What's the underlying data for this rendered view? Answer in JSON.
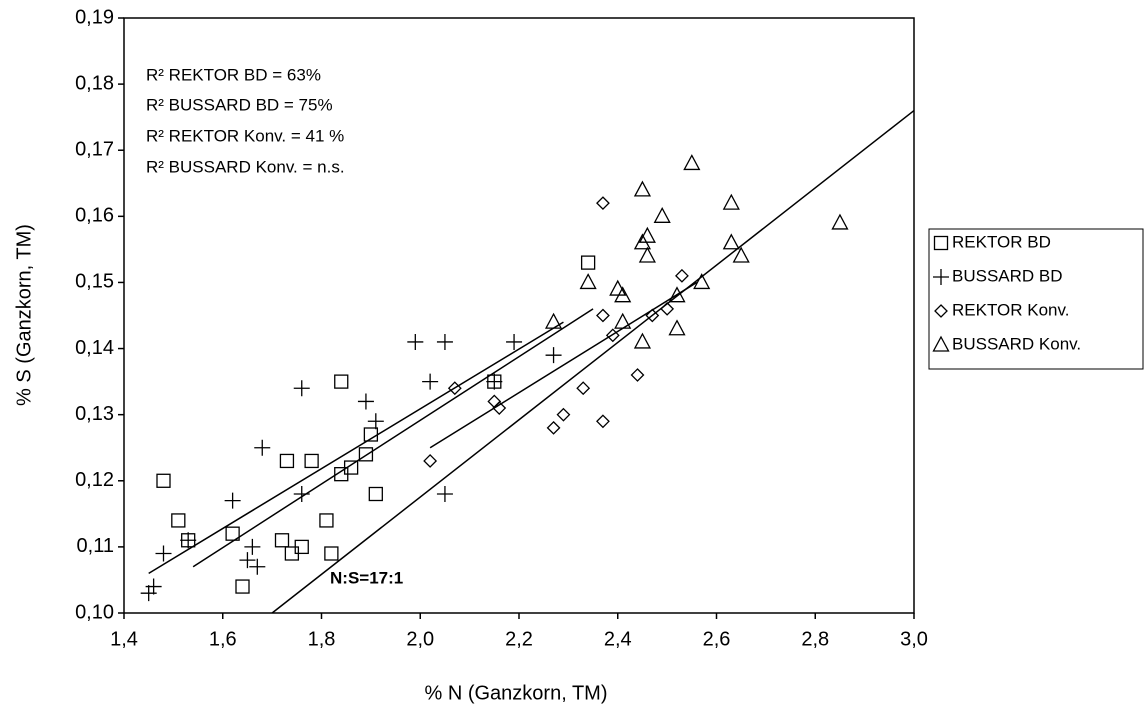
{
  "chart_data": {
    "type": "scatter",
    "xlabel": "% N (Ganzkorn, TM)",
    "ylabel": "% S (Ganzkorn, TM)",
    "xlim": [
      1.4,
      3.0
    ],
    "ylim": [
      0.1,
      0.19
    ],
    "xticks": [
      {
        "value": 1.4,
        "label": "1,4"
      },
      {
        "value": 1.6,
        "label": "1,6"
      },
      {
        "value": 1.8,
        "label": "1,8"
      },
      {
        "value": 2.0,
        "label": "2,0"
      },
      {
        "value": 2.2,
        "label": "2,2"
      },
      {
        "value": 2.4,
        "label": "2,4"
      },
      {
        "value": 2.6,
        "label": "2,6"
      },
      {
        "value": 2.8,
        "label": "2,8"
      },
      {
        "value": 3.0,
        "label": "3,0"
      }
    ],
    "yticks": [
      {
        "value": 0.1,
        "label": "0,10"
      },
      {
        "value": 0.11,
        "label": "0,11"
      },
      {
        "value": 0.12,
        "label": "0,12"
      },
      {
        "value": 0.13,
        "label": "0,13"
      },
      {
        "value": 0.14,
        "label": "0,14"
      },
      {
        "value": 0.15,
        "label": "0,15"
      },
      {
        "value": 0.16,
        "label": "0,16"
      },
      {
        "value": 0.17,
        "label": "0,17"
      },
      {
        "value": 0.18,
        "label": "0,18"
      },
      {
        "value": 0.19,
        "label": "0,19"
      }
    ],
    "legend": "right",
    "series": [
      {
        "name": "REKTOR BD",
        "marker": "square",
        "color": "#000000",
        "x": [
          1.48,
          1.51,
          1.53,
          1.62,
          1.64,
          1.72,
          1.74,
          1.73,
          1.76,
          1.78,
          1.84,
          1.86,
          1.84,
          1.89,
          1.9,
          1.91,
          1.81,
          1.82,
          2.15,
          2.34
        ],
        "values": [
          0.12,
          0.114,
          0.111,
          0.112,
          0.104,
          0.111,
          0.109,
          0.123,
          0.11,
          0.123,
          0.135,
          0.122,
          0.121,
          0.124,
          0.127,
          0.118,
          0.114,
          0.109,
          0.135,
          0.153
        ]
      },
      {
        "name": "BUSSARD BD",
        "marker": "plus",
        "color": "#000000",
        "x": [
          1.45,
          1.46,
          1.48,
          1.53,
          1.62,
          1.65,
          1.66,
          1.67,
          1.68,
          1.76,
          1.76,
          1.89,
          1.91,
          1.99,
          2.02,
          2.05,
          2.05,
          2.19,
          2.27,
          2.15
        ],
        "values": [
          0.103,
          0.104,
          0.109,
          0.111,
          0.117,
          0.108,
          0.11,
          0.107,
          0.125,
          0.134,
          0.118,
          0.132,
          0.129,
          0.141,
          0.135,
          0.141,
          0.118,
          0.141,
          0.139,
          0.135
        ]
      },
      {
        "name": "REKTOR Konv.",
        "marker": "diamond",
        "color": "#000000",
        "x": [
          2.07,
          2.02,
          2.15,
          2.16,
          2.27,
          2.29,
          2.33,
          2.37,
          2.37,
          2.37,
          2.39,
          2.44,
          2.47,
          2.5,
          2.53
        ],
        "values": [
          0.134,
          0.123,
          0.132,
          0.131,
          0.128,
          0.13,
          0.134,
          0.129,
          0.145,
          0.162,
          0.142,
          0.136,
          0.145,
          0.146,
          0.151
        ]
      },
      {
        "name": "BUSSARD Konv.",
        "marker": "triangle",
        "color": "#000000",
        "x": [
          2.27,
          2.34,
          2.4,
          2.41,
          2.41,
          2.45,
          2.45,
          2.46,
          2.45,
          2.46,
          2.49,
          2.55,
          2.57,
          2.52,
          2.52,
          2.63,
          2.63,
          2.65,
          2.85
        ],
        "values": [
          0.144,
          0.15,
          0.149,
          0.148,
          0.144,
          0.164,
          0.156,
          0.157,
          0.141,
          0.154,
          0.16,
          0.168,
          0.15,
          0.148,
          0.143,
          0.162,
          0.156,
          0.154,
          0.159
        ]
      }
    ],
    "trendlines": [
      {
        "x": [
          1.45,
          2.29
        ],
        "values": [
          0.106,
          0.144
        ]
      },
      {
        "x": [
          1.54,
          2.35
        ],
        "values": [
          0.107,
          0.146
        ]
      },
      {
        "x": [
          2.02,
          2.56
        ],
        "values": [
          0.125,
          0.15
        ]
      },
      {
        "x": [
          1.7,
          3.0
        ],
        "values": [
          0.1,
          0.176
        ]
      }
    ],
    "annotations": [
      "R² REKTOR BD = 63%",
      "R²  BUSSARD BD = 75%",
      "R² REKTOR Konv. = 41 %",
      "R² BUSSARD Konv. = n.s.",
      "N:S=17:1"
    ]
  }
}
